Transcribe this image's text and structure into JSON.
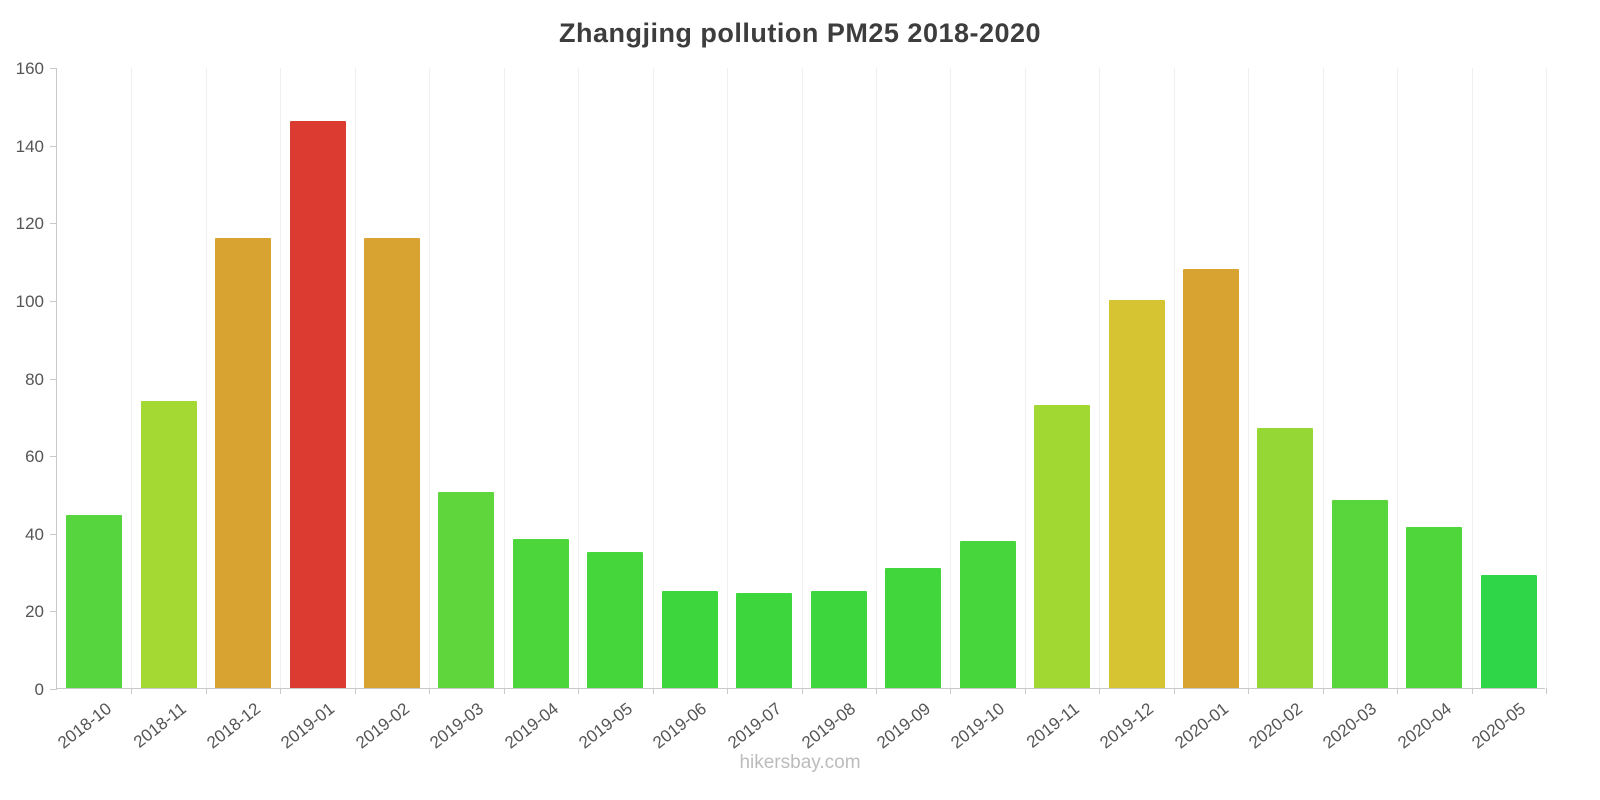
{
  "page": {
    "footer": "hikersbay.com"
  },
  "chart_data": {
    "type": "bar",
    "title": "Zhangjing pollution PM25 2018-2020",
    "xlabel": "",
    "ylabel": "",
    "ylim": [
      0,
      160
    ],
    "yticks": [
      0,
      20,
      40,
      60,
      80,
      100,
      120,
      140,
      160
    ],
    "grid": "faint-vertical",
    "legend": "none",
    "categories": [
      "2018-10",
      "2018-11",
      "2018-12",
      "2019-01",
      "2019-02",
      "2019-03",
      "2019-04",
      "2019-05",
      "2019-06",
      "2019-07",
      "2019-08",
      "2019-09",
      "2019-10",
      "2019-11",
      "2019-12",
      "2020-01",
      "2020-02",
      "2020-03",
      "2020-04",
      "2020-05"
    ],
    "values": [
      44.5,
      74,
      116,
      146,
      116,
      50.5,
      38.5,
      35,
      25,
      24.5,
      25,
      31,
      38,
      73,
      100,
      108,
      67,
      48.5,
      41.5,
      29
    ],
    "colors": [
      "#57d53e",
      "#a4d832",
      "#d8a331",
      "#dc3b32",
      "#d8a331",
      "#5fd63c",
      "#4cd63b",
      "#45d63b",
      "#3dd63c",
      "#3dd63c",
      "#3dd63c",
      "#41d63c",
      "#47d63b",
      "#a2d832",
      "#d6c432",
      "#d8a331",
      "#95d735",
      "#5ad63d",
      "#4ed63b",
      "#2fd648"
    ]
  }
}
